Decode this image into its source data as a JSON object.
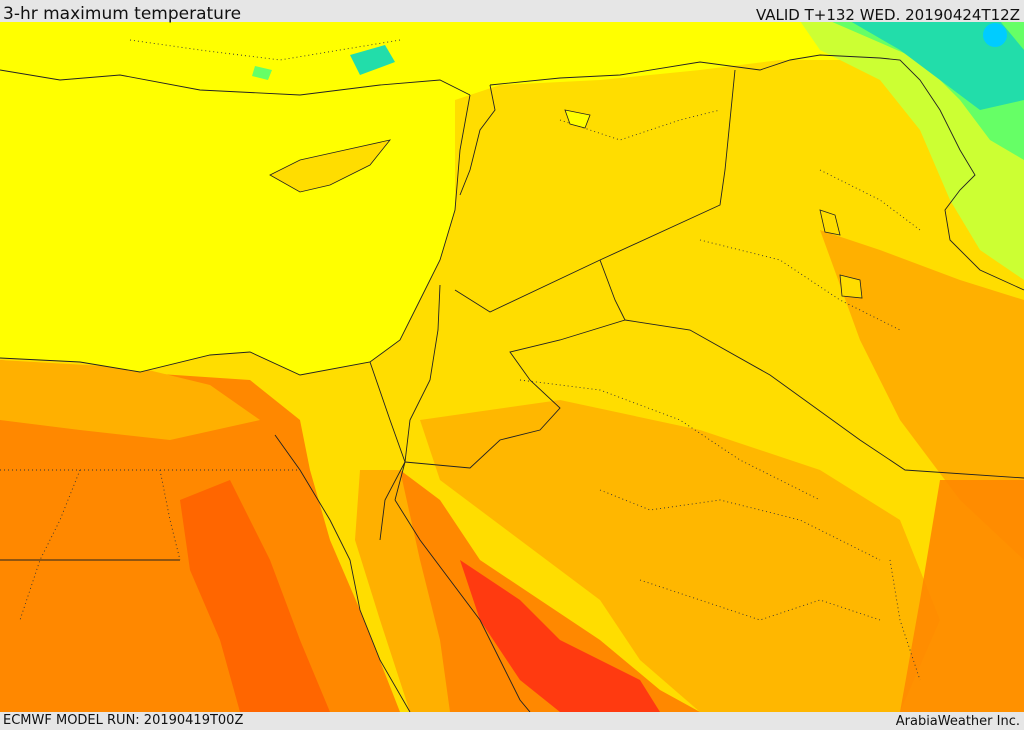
{
  "header": {
    "title": "3-hr maximum temperature",
    "valid": "VALID T+132 WED. 20190424T12Z"
  },
  "footer": {
    "model_run": "ECMWF MODEL RUN: 20190419T00Z",
    "credit": "ArabiaWeather Inc."
  },
  "colors": {
    "sea": "#ffff00",
    "warm": "#ffdd00",
    "warmer": "#ffb000",
    "hot": "#ff8800",
    "hotter": "#ff6600",
    "hottest": "#ff3a10",
    "cool_light": "#ccff33",
    "cool": "#66ff66",
    "cooler": "#22ddaa",
    "coldest": "#00ccff",
    "border": "#222222"
  }
}
